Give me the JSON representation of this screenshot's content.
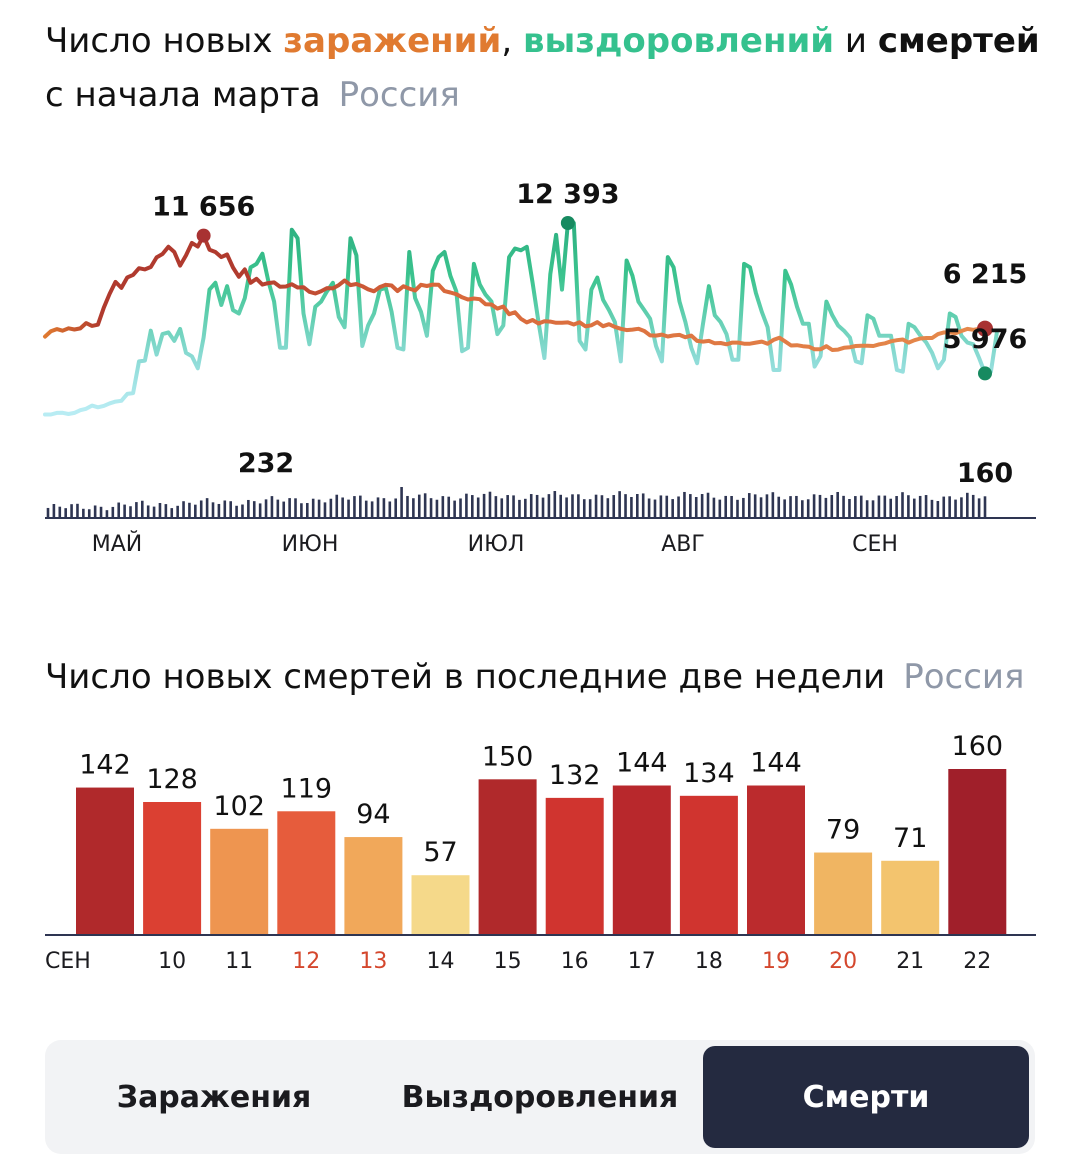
{
  "header": {
    "title_prefix": "Число новых ",
    "title_infections": "заражений",
    "title_comma": ", ",
    "title_recoveries": "выздоровлений",
    "title_and": " и ",
    "title_deaths": "смертей",
    "subtitle": "с начала марта",
    "region": "Россия"
  },
  "colors": {
    "infections": "#e07a30",
    "infections_peak": "#a83232",
    "recoveries": "#2aa57a",
    "recoveries_light": "#a8e4ec",
    "deaths_bars": "#2e3552",
    "bar_dark_red": "#a82128",
    "bar_red": "#c9332f",
    "bar_orange_red": "#e65c3c",
    "bar_orange": "#ee9550",
    "bar_light_orange": "#f2b562",
    "bar_yellow": "#f5d98a",
    "weekend_label": "#d4472d"
  },
  "main_chart": {
    "title": "Число новых заражений, выздоровлений и смертей с начала марта",
    "infections_annotations": {
      "peak": "11 656",
      "last": "6 215"
    },
    "recoveries_annotations": {
      "peak": "12 393",
      "last": "5 976"
    },
    "deaths_annotations": {
      "peak": "232",
      "last": "160"
    },
    "month_labels": [
      "МАЙ",
      "ИЮН",
      "ИЮЛ",
      "АВГ",
      "СЕН"
    ]
  },
  "chart_data": [
    {
      "type": "line",
      "title": "Число новых заражений, выздоровлений и смертей с начала марта",
      "x_range": [
        "2020-04-14",
        "2020-09-22"
      ],
      "series": [
        {
          "name": "заражений",
          "peak": 11656,
          "last": 6215,
          "values": [
            5750,
            6060,
            6190,
            6100,
            6240,
            6170,
            6230,
            6540,
            6380,
            6450,
            7440,
            8250,
            8950,
            8600,
            9210,
            9360,
            9750,
            9680,
            9820,
            10380,
            10580,
            11000,
            10700,
            9900,
            10500,
            11231,
            11012,
            11656,
            10830,
            10700,
            10400,
            10550,
            9790,
            9250,
            9680,
            8900,
            9130,
            8790,
            8880,
            8920,
            8670,
            8680,
            8810,
            8620,
            8640,
            8370,
            8270,
            8400,
            8590,
            8570,
            8760,
            9030,
            8760,
            8830,
            8700,
            8520,
            8400,
            8650,
            8780,
            8740,
            8420,
            8690,
            8560,
            8450,
            8780,
            8710,
            8790,
            8780,
            8410,
            8330,
            8230,
            8050,
            7920,
            7980,
            7940,
            7640,
            7630,
            7390,
            7510,
            7060,
            7170,
            6790,
            6580,
            6720,
            6520,
            6650,
            6630,
            6560,
            6560,
            6580,
            6460,
            6590,
            6350,
            6410,
            6600,
            6360,
            6480,
            6320,
            6210,
            6130,
            6160,
            6210,
            6080,
            5820,
            5810,
            5870,
            5760,
            5820,
            5850,
            5720,
            5810,
            5500,
            5460,
            5500,
            5360,
            5380,
            5300,
            5400,
            5400,
            5340,
            5340,
            5400,
            5460,
            5340,
            5560,
            5690,
            5460,
            5230,
            5250,
            5190,
            5160,
            5010,
            5010,
            5190,
            4970,
            4990,
            5100,
            5130,
            5200,
            5220,
            5220,
            5200,
            5300,
            5360,
            5480,
            5540,
            5580,
            5400,
            5540,
            5640,
            5670,
            5670,
            5900,
            6000,
            5990,
            5950,
            6080,
            6200,
            6150,
            6200,
            6215
          ]
        },
        {
          "name": "выздоровлений",
          "peak": 12393,
          "last": 5976,
          "values": [
            1200,
            1200,
            1290,
            1300,
            1230,
            1290,
            1450,
            1530,
            1720,
            1620,
            1700,
            1850,
            1950,
            2000,
            2400,
            2450,
            4300,
            4350,
            6100,
            4700,
            5900,
            6000,
            5500,
            6200,
            4800,
            4600,
            3900,
            5700,
            8500,
            8900,
            7600,
            8700,
            7300,
            7100,
            8000,
            9800,
            10000,
            10600,
            9000,
            7800,
            5100,
            5100,
            12000,
            11500,
            7100,
            5300,
            7500,
            7800,
            8400,
            8900,
            6900,
            6300,
            11500,
            10500,
            5200,
            6400,
            7100,
            8500,
            8600,
            7200,
            5100,
            5000,
            10700,
            8000,
            7200,
            5800,
            9600,
            10400,
            10700,
            9300,
            8400,
            4900,
            5100,
            10000,
            8800,
            8200,
            7800,
            5900,
            6400,
            10400,
            10900,
            10800,
            11000,
            8900,
            6600,
            4500,
            9400,
            11700,
            8500,
            12393,
            12393,
            5500,
            5000,
            8500,
            9200,
            7900,
            7300,
            6600,
            4300,
            10200,
            9300,
            7800,
            7300,
            6800,
            5200,
            4300,
            10400,
            9800,
            7800,
            6600,
            5100,
            4200,
            6500,
            8700,
            7000,
            6600,
            5900,
            4400,
            4400,
            10000,
            9800,
            8300,
            7200,
            6300,
            3800,
            3800,
            9600,
            8800,
            7500,
            6500,
            6500,
            4000,
            4600,
            7800,
            7000,
            6400,
            6100,
            5700,
            4300,
            4200,
            7000,
            6800,
            5800,
            5800,
            5800,
            3800,
            3700,
            6500,
            6300,
            5800,
            5400,
            4800,
            3900,
            4400,
            7100,
            6900,
            5800,
            5400,
            5300,
            4500,
            3600,
            3700,
            5976
          ]
        },
        {
          "name": "смертей",
          "peak": 232,
          "last": 160
        }
      ]
    },
    {
      "type": "bar",
      "title": "Число новых смертей в последние две недели",
      "categories": [
        "СЕН",
        "10",
        "11",
        "12",
        "13",
        "14",
        "15",
        "16",
        "17",
        "18",
        "19",
        "20",
        "21",
        "22"
      ],
      "values": [
        142,
        128,
        102,
        119,
        94,
        57,
        150,
        132,
        144,
        134,
        144,
        79,
        71,
        160
      ],
      "colors": [
        "#b0292b",
        "#db4032",
        "#ee9550",
        "#e65c3c",
        "#f1a85a",
        "#f5d98a",
        "#b0292b",
        "#d0342f",
        "#b8282c",
        "#d0342f",
        "#bb2b2d",
        "#f0b562",
        "#f3c46e",
        "#a01f2a"
      ],
      "weekend_categories": [
        "12",
        "13",
        "19",
        "20"
      ]
    }
  ],
  "bottom_chart": {
    "title": "Число новых смертей в последние две недели",
    "region": "Россия"
  },
  "tabs": [
    {
      "label": "Заражения"
    },
    {
      "label": "Выздоровления"
    },
    {
      "label": "Смерти",
      "active": true
    }
  ]
}
